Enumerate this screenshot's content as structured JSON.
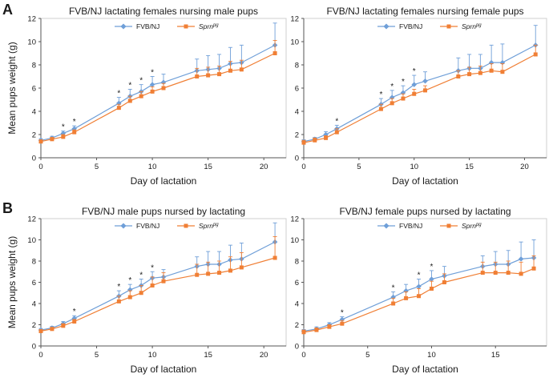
{
  "chart_data": [
    {
      "panel_label": "A",
      "type": "line",
      "title": "FVB/NJ lactating females nursing male pups",
      "xlabel": "Day of lactation",
      "ylabel": "Mean pups  weight (g)",
      "xlim": [
        0,
        22
      ],
      "ylim": [
        0,
        12
      ],
      "xticks": [
        0,
        5,
        10,
        15,
        20
      ],
      "yticks": [
        0,
        2,
        4,
        6,
        8,
        10,
        12
      ],
      "x": [
        0,
        1,
        2,
        3,
        7,
        8,
        9,
        10,
        11,
        14,
        15,
        16,
        17,
        18,
        21
      ],
      "series": [
        {
          "name": "FVB/NJ",
          "color": "#6f9fd8",
          "values": [
            1.5,
            1.7,
            2.1,
            2.5,
            4.7,
            5.3,
            5.7,
            6.3,
            6.5,
            7.5,
            7.6,
            7.7,
            8.1,
            8.2,
            9.7
          ],
          "errors": [
            0.15,
            0.15,
            0.2,
            0.25,
            0.5,
            0.6,
            0.6,
            0.7,
            0.7,
            1.0,
            1.2,
            1.2,
            1.4,
            1.5,
            1.9
          ]
        },
        {
          "name": "Sprn",
          "name_sup": "pg",
          "color": "#f07f35",
          "values": [
            1.4,
            1.6,
            1.8,
            2.2,
            4.3,
            4.9,
            5.3,
            5.7,
            6.0,
            7.0,
            7.1,
            7.2,
            7.5,
            7.6,
            9.0
          ],
          "errors": [
            0.15,
            0.15,
            0.2,
            0.2,
            0.3,
            0.4,
            0.4,
            0.4,
            0.4,
            0.7,
            0.7,
            0.7,
            0.8,
            0.8,
            1.1
          ]
        }
      ],
      "significance": [
        {
          "x": 2,
          "label": "*"
        },
        {
          "x": 3,
          "label": "*"
        },
        {
          "x": 7,
          "label": "*"
        },
        {
          "x": 8,
          "label": "*"
        },
        {
          "x": 9,
          "label": "*"
        },
        {
          "x": 10,
          "label": "*"
        }
      ]
    },
    {
      "panel_label": "",
      "type": "line",
      "title": "FVB/NJ lactating females nursing female pups",
      "xlabel": "Day of lactation",
      "ylabel": "",
      "xlim": [
        0,
        22
      ],
      "ylim": [
        0,
        12
      ],
      "xticks": [
        0,
        5,
        10,
        15,
        20
      ],
      "yticks": [
        0,
        2,
        4,
        6,
        8,
        10,
        12
      ],
      "x": [
        0,
        1,
        2,
        3,
        7,
        8,
        9,
        10,
        11,
        14,
        15,
        16,
        17,
        18,
        21
      ],
      "series": [
        {
          "name": "FVB/NJ",
          "color": "#6f9fd8",
          "values": [
            1.4,
            1.6,
            2.0,
            2.5,
            4.6,
            5.2,
            5.6,
            6.3,
            6.6,
            7.5,
            7.7,
            7.7,
            8.2,
            8.2,
            9.7
          ],
          "errors": [
            0.15,
            0.15,
            0.25,
            0.3,
            0.5,
            0.6,
            0.6,
            0.8,
            0.8,
            1.1,
            1.2,
            1.2,
            1.5,
            1.6,
            1.7
          ]
        },
        {
          "name": "Sprn",
          "name_sup": "pg",
          "color": "#f07f35",
          "values": [
            1.3,
            1.5,
            1.7,
            2.2,
            4.2,
            4.7,
            5.1,
            5.5,
            5.8,
            7.0,
            7.2,
            7.3,
            7.5,
            7.4,
            8.9
          ],
          "errors": [
            0.2,
            0.2,
            0.2,
            0.3,
            0.4,
            0.4,
            0.4,
            0.4,
            0.4,
            0.5,
            0.6,
            0.6,
            0.6,
            0.7,
            0.8
          ]
        }
      ],
      "significance": [
        {
          "x": 3,
          "label": "*"
        },
        {
          "x": 7,
          "label": "*"
        },
        {
          "x": 8,
          "label": "*"
        },
        {
          "x": 9,
          "label": "*"
        },
        {
          "x": 10,
          "label": "*"
        }
      ]
    },
    {
      "panel_label": "B",
      "type": "line",
      "title": "FVB/NJ male pups nursed by lactating",
      "xlabel": "Day of lactation",
      "ylabel": "Mean pups  weight (g)",
      "xlim": [
        0,
        22
      ],
      "ylim": [
        0,
        12
      ],
      "xticks": [
        0,
        5,
        10,
        15,
        20
      ],
      "yticks": [
        0,
        2,
        4,
        6,
        8,
        10,
        12
      ],
      "x": [
        0,
        1,
        2,
        3,
        7,
        8,
        9,
        10,
        11,
        14,
        15,
        16,
        17,
        18,
        21
      ],
      "series": [
        {
          "name": "FVB/NJ",
          "color": "#6f9fd8",
          "values": [
            1.5,
            1.7,
            2.1,
            2.6,
            4.7,
            5.3,
            5.7,
            6.4,
            6.5,
            7.5,
            7.7,
            7.7,
            8.1,
            8.2,
            9.8
          ],
          "errors": [
            0.15,
            0.15,
            0.2,
            0.25,
            0.5,
            0.5,
            0.6,
            0.6,
            0.7,
            0.9,
            1.2,
            1.2,
            1.4,
            1.5,
            1.8
          ]
        },
        {
          "name": "Sprn",
          "name_sup": "pg",
          "color": "#f07f35",
          "values": [
            1.4,
            1.6,
            1.9,
            2.3,
            4.2,
            4.6,
            5.0,
            5.7,
            6.1,
            6.7,
            6.8,
            6.9,
            7.1,
            7.4,
            8.3
          ],
          "errors": [
            0.15,
            0.15,
            0.2,
            0.2,
            0.5,
            0.6,
            0.7,
            0.8,
            0.8,
            1.0,
            1.1,
            1.1,
            1.3,
            1.4,
            2.0
          ]
        }
      ],
      "significance": [
        {
          "x": 3,
          "label": "*"
        },
        {
          "x": 7,
          "label": "*"
        },
        {
          "x": 8,
          "label": "*"
        },
        {
          "x": 9,
          "label": "*"
        },
        {
          "x": 10,
          "label": "*"
        }
      ]
    },
    {
      "panel_label": "",
      "type": "line",
      "title": "FVB/NJ female pups nursed by lactating",
      "xlabel": "Day of lactation",
      "ylabel": "",
      "xlim": [
        0,
        19
      ],
      "ylim": [
        0,
        12
      ],
      "xticks": [
        0,
        5,
        10,
        15
      ],
      "yticks": [
        0,
        2,
        4,
        6,
        8,
        10,
        12
      ],
      "x": [
        0,
        1,
        2,
        3,
        7,
        8,
        9,
        10,
        11,
        14,
        15,
        16,
        17,
        18
      ],
      "series": [
        {
          "name": "FVB/NJ",
          "color": "#6f9fd8",
          "values": [
            1.4,
            1.6,
            2.0,
            2.5,
            4.6,
            5.2,
            5.6,
            6.3,
            6.6,
            7.5,
            7.7,
            7.7,
            8.2,
            8.3
          ],
          "errors": [
            0.15,
            0.2,
            0.2,
            0.25,
            0.5,
            0.6,
            0.7,
            0.8,
            0.9,
            1.0,
            1.2,
            1.3,
            1.6,
            1.7
          ]
        },
        {
          "name": "Sprn",
          "name_sup": "pg",
          "color": "#f07f35",
          "values": [
            1.3,
            1.5,
            1.8,
            2.1,
            4.0,
            4.5,
            4.7,
            5.4,
            6.0,
            6.9,
            6.9,
            6.9,
            6.8,
            7.3
          ],
          "errors": [
            0.2,
            0.2,
            0.2,
            0.3,
            0.5,
            0.6,
            0.7,
            0.7,
            0.8,
            1.0,
            1.0,
            1.1,
            1.1,
            1.2
          ]
        }
      ],
      "significance": [
        {
          "x": 3,
          "label": "*"
        },
        {
          "x": 7,
          "label": "*"
        },
        {
          "x": 9,
          "label": "*"
        },
        {
          "x": 10,
          "label": "*"
        }
      ]
    }
  ]
}
